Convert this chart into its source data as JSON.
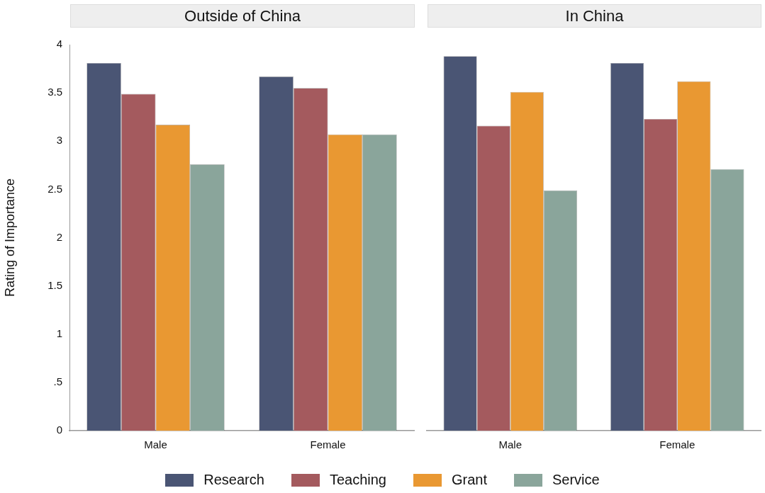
{
  "chart_data": [
    {
      "type": "bar",
      "title": "Outside of China",
      "ylabel": "Rating of Importance",
      "categories": [
        "Male",
        "Female"
      ],
      "series": [
        {
          "name": "Research",
          "color": "#4a5574",
          "values": [
            3.81,
            3.67
          ]
        },
        {
          "name": "Teaching",
          "color": "#a45a5e",
          "values": [
            3.49,
            3.55
          ]
        },
        {
          "name": "Grant",
          "color": "#e99832",
          "values": [
            3.17,
            3.07
          ]
        },
        {
          "name": "Service",
          "color": "#8aa59b",
          "values": [
            2.76,
            3.07
          ]
        }
      ],
      "ylim": [
        0,
        4
      ],
      "yticks": [
        0,
        {
          "value": 0.5,
          "label": ".5"
        },
        1,
        1.5,
        2,
        2.5,
        3,
        3.5,
        4
      ],
      "grid": false,
      "legend": "bottom"
    },
    {
      "type": "bar",
      "title": "In China",
      "categories": [
        "Male",
        "Female"
      ],
      "series": [
        {
          "color": "#4a5574",
          "values": [
            3.88,
            3.81
          ]
        },
        {
          "color": "#a45a5e",
          "values": [
            3.16,
            3.23
          ]
        },
        {
          "color": "#e99832",
          "values": [
            3.51,
            3.62
          ]
        },
        {
          "color": "#8aa59b",
          "values": [
            2.49,
            2.71
          ]
        }
      ],
      "ylim": [
        0,
        4
      ],
      "grid": false,
      "tick_labels": "x"
    }
  ]
}
